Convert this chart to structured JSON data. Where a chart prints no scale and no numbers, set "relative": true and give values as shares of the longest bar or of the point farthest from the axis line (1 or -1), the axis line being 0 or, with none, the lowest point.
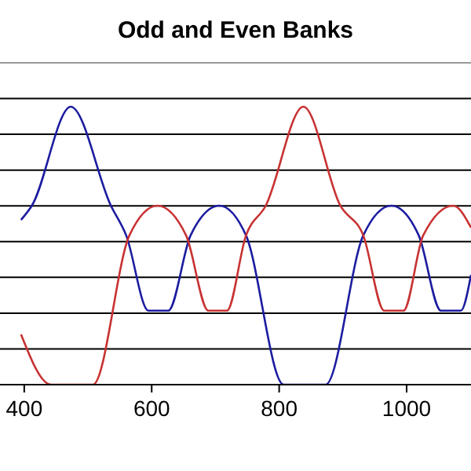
{
  "chart_data": {
    "type": "line",
    "title": "Odd and Even Banks",
    "relative": true,
    "x": [
      395,
      412,
      473,
      536,
      560,
      595,
      626,
      661,
      706,
      748,
      807,
      873,
      932,
      976,
      1019,
      1054,
      1085,
      1101
    ],
    "series": [
      {
        "color": "#1c1ca0",
        "values": [
          0.593,
          0.644,
          1,
          0.644,
          0.537,
          0.266,
          0.266,
          0.537,
          0.644,
          0.537,
          0,
          0,
          0.537,
          0.644,
          0.537,
          0.266,
          0.266,
          0.395
        ]
      },
      {
        "color": "#c83232",
        "x": [
          395,
          442,
          508,
          565,
          609,
          654,
          689,
          718,
          748,
          779,
          838,
          896,
          932,
          965,
          995,
          1026,
          1073,
          1101
        ],
        "values": [
          0.181,
          0,
          0,
          0.537,
          0.644,
          0.537,
          0.266,
          0.266,
          0.537,
          0.644,
          1,
          0.644,
          0.537,
          0.266,
          0.266,
          0.537,
          0.644,
          0.565
        ]
      }
    ],
    "xlim": [
      362,
      1101
    ],
    "xticks": [
      400,
      600,
      800,
      1000
    ],
    "tick_labels": "x",
    "grid": "y"
  }
}
